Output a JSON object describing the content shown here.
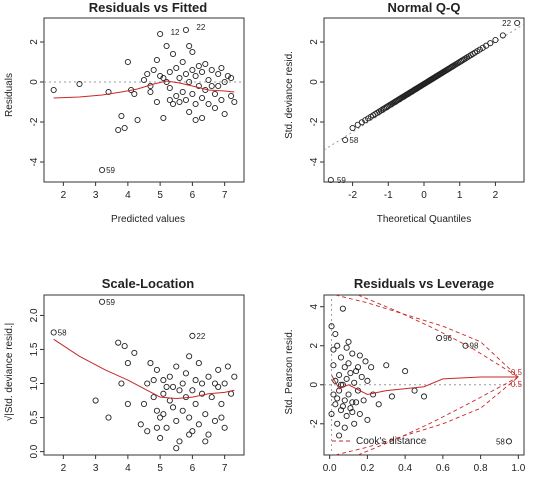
{
  "chart_data": [
    {
      "type": "scatter",
      "title": "Residuals vs Fitted",
      "xlabel": "Predicted values",
      "ylabel": "Residuals",
      "xlim": [
        1.4,
        7.6
      ],
      "ylim": [
        -5.0,
        3.2
      ],
      "xticks": [
        2,
        3,
        4,
        5,
        6,
        7
      ],
      "yticks": [
        -4,
        -2,
        0,
        2
      ],
      "refline": {
        "type": "hline",
        "value": 0
      },
      "smooth": [
        [
          1.7,
          -0.8
        ],
        [
          2.5,
          -0.75
        ],
        [
          3.2,
          -0.65
        ],
        [
          3.8,
          -0.5
        ],
        [
          4.3,
          -0.35
        ],
        [
          4.8,
          -0.1
        ],
        [
          5.2,
          0.05
        ],
        [
          5.6,
          -0.05
        ],
        [
          6.0,
          -0.2
        ],
        [
          6.5,
          -0.4
        ],
        [
          7.0,
          -0.45
        ],
        [
          7.3,
          -0.5
        ]
      ],
      "points": [
        [
          1.7,
          -0.4
        ],
        [
          2.5,
          -0.1
        ],
        [
          3.2,
          -4.4
        ],
        [
          3.4,
          -0.5
        ],
        [
          3.7,
          -2.4
        ],
        [
          3.8,
          -1.7
        ],
        [
          3.9,
          -2.3
        ],
        [
          4.0,
          1.0
        ],
        [
          4.1,
          -0.4
        ],
        [
          4.2,
          -0.6
        ],
        [
          4.3,
          -1.9
        ],
        [
          4.5,
          0.1
        ],
        [
          4.6,
          0.4
        ],
        [
          4.7,
          -0.5
        ],
        [
          4.8,
          0.6
        ],
        [
          4.9,
          1.1
        ],
        [
          5.0,
          2.4
        ],
        [
          5.1,
          0.2
        ],
        [
          5.1,
          -1.8
        ],
        [
          5.2,
          1.8
        ],
        [
          5.2,
          0.0
        ],
        [
          5.3,
          0.5
        ],
        [
          5.3,
          -0.3
        ],
        [
          5.4,
          -1.1
        ],
        [
          5.4,
          1.4
        ],
        [
          5.5,
          0.7
        ],
        [
          5.5,
          -0.7
        ],
        [
          5.6,
          0.2
        ],
        [
          5.7,
          -0.5
        ],
        [
          5.7,
          1.0
        ],
        [
          5.8,
          -0.9
        ],
        [
          5.8,
          0.4
        ],
        [
          5.9,
          0.0
        ],
        [
          5.9,
          -1.5
        ],
        [
          6.0,
          0.6
        ],
        [
          6.0,
          1.5
        ],
        [
          6.0,
          -0.6
        ],
        [
          6.1,
          0.3
        ],
        [
          6.1,
          -1.1
        ],
        [
          6.2,
          0.8
        ],
        [
          6.2,
          -0.2
        ],
        [
          6.3,
          -0.8
        ],
        [
          6.3,
          0.5
        ],
        [
          6.4,
          -0.4
        ],
        [
          6.5,
          0.1
        ],
        [
          6.5,
          -1.1
        ],
        [
          6.6,
          0.6
        ],
        [
          6.7,
          -0.6
        ],
        [
          6.7,
          -1.3
        ],
        [
          6.8,
          0.4
        ],
        [
          6.8,
          -0.2
        ],
        [
          6.9,
          -0.9
        ],
        [
          7.0,
          0.0
        ],
        [
          7.0,
          -1.6
        ],
        [
          7.1,
          0.3
        ],
        [
          7.2,
          -0.7
        ],
        [
          7.2,
          0.2
        ],
        [
          7.3,
          -1.0
        ],
        [
          4.7,
          -0.2
        ],
        [
          5.0,
          0.3
        ],
        [
          5.6,
          -1.0
        ],
        [
          6.4,
          0.9
        ],
        [
          6.9,
          0.7
        ],
        [
          5.9,
          1.8
        ],
        [
          6.6,
          -0.2
        ],
        [
          5.3,
          -0.9
        ],
        [
          4.9,
          -1.0
        ],
        [
          6.1,
          -1.9
        ],
        [
          6.3,
          -1.8
        ],
        [
          5.8,
          2.6
        ]
      ],
      "labels": [
        {
          "text": "12",
          "x": 5.2,
          "y": 2.5
        },
        {
          "text": "22",
          "x": 6.0,
          "y": 2.75
        },
        {
          "text": "59",
          "x": 3.2,
          "y": -4.4
        }
      ]
    },
    {
      "type": "scatter",
      "title": "Normal Q-Q",
      "xlabel": "Theoretical Quantiles",
      "ylabel": "Std. deviance resid.",
      "xlim": [
        -2.8,
        2.8
      ],
      "ylim": [
        -5.0,
        3.2
      ],
      "xticks": [
        -2,
        -1,
        0,
        1,
        2
      ],
      "yticks": [
        -4,
        -2,
        0,
        2
      ],
      "refline": {
        "type": "abline",
        "points": [
          [
            -2.8,
            -3.4
          ],
          [
            2.8,
            2.9
          ]
        ]
      },
      "labels": [
        {
          "text": "22",
          "x": 2.55,
          "y": 2.95
        },
        {
          "text": "58",
          "x": -2.2,
          "y": -2.9
        },
        {
          "text": "59",
          "x": -2.55,
          "y": -4.9
        }
      ]
    },
    {
      "type": "scatter",
      "title": "Scale-Location",
      "xlabel": "",
      "ylabel": "√|Std. deviance resid.|",
      "xlim": [
        1.4,
        7.6
      ],
      "ylim": [
        -0.05,
        2.3
      ],
      "xticks": [
        2,
        3,
        4,
        5,
        6,
        7
      ],
      "yticks": [
        0.0,
        0.5,
        1.0,
        1.5,
        2.0
      ],
      "smooth": [
        [
          1.7,
          1.65
        ],
        [
          2.5,
          1.4
        ],
        [
          3.3,
          1.2
        ],
        [
          4.0,
          1.05
        ],
        [
          4.6,
          0.9
        ],
        [
          5.0,
          0.8
        ],
        [
          5.5,
          0.78
        ],
        [
          6.0,
          0.8
        ],
        [
          6.5,
          0.85
        ],
        [
          7.0,
          0.87
        ],
        [
          7.3,
          0.9
        ]
      ],
      "points": [
        [
          1.7,
          1.75
        ],
        [
          3.2,
          2.2
        ],
        [
          3.0,
          0.75
        ],
        [
          3.4,
          0.5
        ],
        [
          3.7,
          1.6
        ],
        [
          3.9,
          1.55
        ],
        [
          3.8,
          1.0
        ],
        [
          4.0,
          1.3
        ],
        [
          4.0,
          0.7
        ],
        [
          4.2,
          1.45
        ],
        [
          4.4,
          0.4
        ],
        [
          4.5,
          0.7
        ],
        [
          4.6,
          1.0
        ],
        [
          4.6,
          0.3
        ],
        [
          4.7,
          1.3
        ],
        [
          4.8,
          0.8
        ],
        [
          4.8,
          1.05
        ],
        [
          4.9,
          1.2
        ],
        [
          4.9,
          0.6
        ],
        [
          5.0,
          0.2
        ],
        [
          5.0,
          0.5
        ],
        [
          5.1,
          1.05
        ],
        [
          5.1,
          0.85
        ],
        [
          5.2,
          0.95
        ],
        [
          5.2,
          0.35
        ],
        [
          5.3,
          0.75
        ],
        [
          5.3,
          1.1
        ],
        [
          5.4,
          0.65
        ],
        [
          5.4,
          0.95
        ],
        [
          5.5,
          1.25
        ],
        [
          5.5,
          0.45
        ],
        [
          5.6,
          0.9
        ],
        [
          5.6,
          0.15
        ],
        [
          5.7,
          1.0
        ],
        [
          5.7,
          0.6
        ],
        [
          5.8,
          0.8
        ],
        [
          5.8,
          1.15
        ],
        [
          5.9,
          0.5
        ],
        [
          5.9,
          1.4
        ],
        [
          6.0,
          1.7
        ],
        [
          6.0,
          0.9
        ],
        [
          6.0,
          0.3
        ],
        [
          6.1,
          1.05
        ],
        [
          6.1,
          0.7
        ],
        [
          6.2,
          0.4
        ],
        [
          6.2,
          1.3
        ],
        [
          6.3,
          0.85
        ],
        [
          6.3,
          1.0
        ],
        [
          6.4,
          0.55
        ],
        [
          6.5,
          1.1
        ],
        [
          6.5,
          0.25
        ],
        [
          6.6,
          0.8
        ],
        [
          6.7,
          0.45
        ],
        [
          6.8,
          1.2
        ],
        [
          6.8,
          0.95
        ],
        [
          6.9,
          0.7
        ],
        [
          7.0,
          1.0
        ],
        [
          7.0,
          0.35
        ],
        [
          7.1,
          1.25
        ],
        [
          7.2,
          0.85
        ],
        [
          7.3,
          1.1
        ],
        [
          5.1,
          0.55
        ],
        [
          5.9,
          0.25
        ],
        [
          6.4,
          0.15
        ],
        [
          4.9,
          0.35
        ],
        [
          6.7,
          1.0
        ],
        [
          5.5,
          0.05
        ],
        [
          6.9,
          0.5
        ]
      ],
      "labels": [
        {
          "text": "58",
          "x": 1.7,
          "y": 1.75
        },
        {
          "text": "59",
          "x": 3.2,
          "y": 2.2
        },
        {
          "text": "22",
          "x": 6.0,
          "y": 1.7
        }
      ]
    },
    {
      "type": "scatter",
      "title": "Residuals vs Leverage",
      "xlabel": "",
      "ylabel": "Std. Pearson resid.",
      "xlim": [
        -0.03,
        1.03
      ],
      "ylim": [
        -3.6,
        4.6
      ],
      "xticks": [
        0.0,
        0.2,
        0.4,
        0.6,
        0.8,
        1.0
      ],
      "xtick_labels": [
        "0.0",
        "0.2",
        "0.4",
        "0.6",
        "0.8",
        "1.0"
      ],
      "yticks": [
        -2,
        0,
        2,
        4
      ],
      "refline": {
        "type": "hline",
        "value": 0
      },
      "smooth": [
        [
          0.01,
          0.5
        ],
        [
          0.05,
          -0.2
        ],
        [
          0.1,
          0.0
        ],
        [
          0.2,
          -0.5
        ],
        [
          0.3,
          -0.3
        ],
        [
          0.5,
          -0.1
        ],
        [
          0.6,
          0.3
        ],
        [
          0.8,
          0.4
        ],
        [
          1.0,
          0.4
        ]
      ],
      "points": [
        [
          0.01,
          3.0
        ],
        [
          0.01,
          -1.5
        ],
        [
          0.02,
          1.0
        ],
        [
          0.02,
          -0.5
        ],
        [
          0.03,
          0.2
        ],
        [
          0.03,
          -1.0
        ],
        [
          0.04,
          2.0
        ],
        [
          0.04,
          -2.0
        ],
        [
          0.05,
          0.5
        ],
        [
          0.05,
          -0.3
        ],
        [
          0.06,
          1.4
        ],
        [
          0.06,
          -1.3
        ],
        [
          0.07,
          3.9
        ],
        [
          0.07,
          0.0
        ],
        [
          0.08,
          -0.8
        ],
        [
          0.08,
          0.9
        ],
        [
          0.09,
          -1.6
        ],
        [
          0.09,
          0.3
        ],
        [
          0.1,
          1.1
        ],
        [
          0.1,
          -0.5
        ],
        [
          0.11,
          -1.2
        ],
        [
          0.11,
          0.6
        ],
        [
          0.12,
          -0.9
        ],
        [
          0.12,
          1.6
        ],
        [
          0.13,
          0.1
        ],
        [
          0.13,
          -2.0
        ],
        [
          0.14,
          0.7
        ],
        [
          0.15,
          -0.3
        ],
        [
          0.16,
          1.5
        ],
        [
          0.16,
          -1.5
        ],
        [
          0.17,
          0.4
        ],
        [
          0.18,
          -0.8
        ],
        [
          0.19,
          1.2
        ],
        [
          0.2,
          -1.8
        ],
        [
          0.2,
          0.2
        ],
        [
          0.22,
          0.9
        ],
        [
          0.23,
          -0.5
        ],
        [
          0.26,
          -1.0
        ],
        [
          0.3,
          1.0
        ],
        [
          0.33,
          -0.6
        ],
        [
          0.4,
          0.7
        ],
        [
          0.45,
          -0.3
        ],
        [
          0.5,
          -0.6
        ],
        [
          0.58,
          2.4
        ],
        [
          0.72,
          2.0
        ],
        [
          0.95,
          -2.9
        ],
        [
          0.03,
          2.6
        ],
        [
          0.05,
          -2.6
        ],
        [
          0.02,
          1.8
        ],
        [
          0.04,
          -0.7
        ],
        [
          0.06,
          0.0
        ],
        [
          0.09,
          1.9
        ],
        [
          0.12,
          -1.4
        ],
        [
          0.15,
          0.9
        ],
        [
          0.08,
          -2.2
        ],
        [
          0.1,
          2.2
        ],
        [
          0.07,
          -1.1
        ],
        [
          0.14,
          -0.9
        ]
      ],
      "labels": [
        {
          "text": "96",
          "x": 0.58,
          "y": 2.4
        },
        {
          "text": "98",
          "x": 0.72,
          "y": 2.0
        },
        {
          "text": "58",
          "x": 0.95,
          "y": -2.9
        }
      ],
      "cooks": {
        "legend": "Cook's distance",
        "contour_labels": [
          "0.5",
          "0.5"
        ]
      }
    }
  ]
}
